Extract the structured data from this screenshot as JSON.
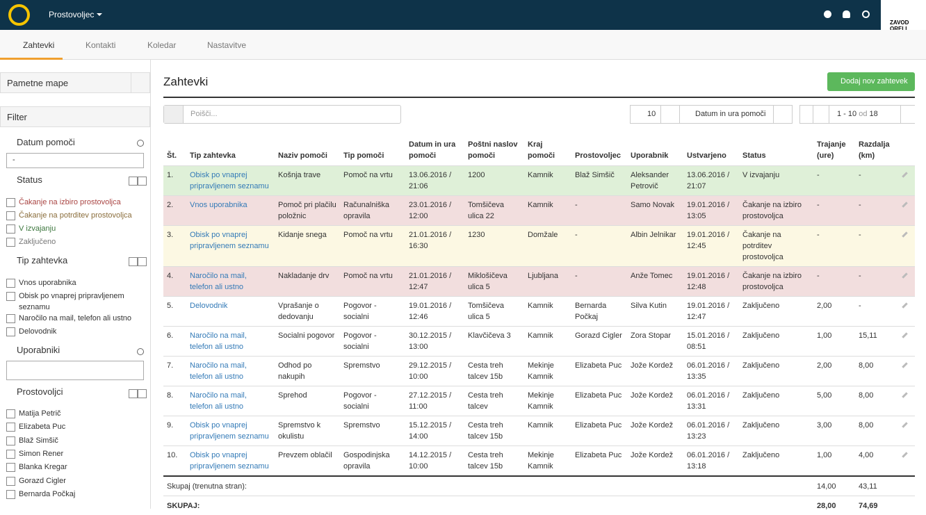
{
  "topbar": {
    "user": "Prostovoljec",
    "logo_text": "ZAVOD ORELI"
  },
  "tabs": [
    "Zahtevki",
    "Kontakti",
    "Koledar",
    "Nastavitve"
  ],
  "sidebar": {
    "smart_folders": "Pametne mape",
    "filter": "Filter",
    "date_section": {
      "title": "Datum pomoči",
      "select": "-"
    },
    "status_section": {
      "title": "Status",
      "options": [
        {
          "label": "Čakanje na izbiro prostovoljca",
          "color": "#a94442"
        },
        {
          "label": "Čakanje na potrditev prostovoljca",
          "color": "#8a6d3b"
        },
        {
          "label": "V izvajanju",
          "color": "#3c763d"
        },
        {
          "label": "Zaključeno",
          "color": "#777777"
        }
      ]
    },
    "type_section": {
      "title": "Tip zahtevka",
      "options": [
        "Vnos uporabnika",
        "Obisk po vnaprej pripravljenem seznamu",
        "Naročilo na mail, telefon ali ustno",
        "Delovodnik"
      ]
    },
    "users_section": {
      "title": "Uporabniki"
    },
    "volunteers_section": {
      "title": "Prostovoljci",
      "options": [
        "Matija Petrič",
        "Elizabeta Puc",
        "Blaž Simšič",
        "Simon Rener",
        "Blanka Kregar",
        "Gorazd Cigler",
        "Bernarda Počkaj"
      ]
    }
  },
  "main": {
    "title": "Zahtevki",
    "add_button": "Dodaj nov zahtevek",
    "search_placeholder": "Poišči...",
    "page_size": "10",
    "sort_by": "Datum in ura pomoči",
    "pagination": {
      "range": "1 - 10",
      "of": "od",
      "total": "18"
    },
    "table": {
      "headers": [
        "Št.",
        "Tip zahtevka",
        "Naziv pomoči",
        "Tip pomoči",
        "Datum in ura pomoči",
        "Poštni naslov pomoči",
        "Kraj pomoči",
        "Prostovoljec",
        "Uporabnik",
        "Ustvarjeno",
        "Status",
        "Trajanje (ure)",
        "Razdalja (km)"
      ],
      "rows": [
        {
          "color": "#dff0d8",
          "cells": [
            "1.",
            "Obisk po vnaprej pripravljenem seznamu",
            "Košnja trave",
            "Pomoč na vrtu",
            "13.06.2016 / 21:06",
            "1200",
            "Kamnik",
            "Blaž Simšič",
            "Aleksander Petrovič",
            "13.06.2016 / 21:07",
            "V izvajanju",
            "-",
            "-"
          ]
        },
        {
          "color": "#f2dede",
          "cells": [
            "2.",
            "Vnos uporabnika",
            "Pomoč pri plačilu položnic",
            "Računalniška opravila",
            "23.01.2016 / 12:00",
            "Tomšičeva ulica 22",
            "Kamnik",
            "-",
            "Samo Novak",
            "19.01.2016 / 13:05",
            "Čakanje na izbiro prostovoljca",
            "-",
            "-"
          ]
        },
        {
          "color": "#fcf8e3",
          "cells": [
            "3.",
            "Obisk po vnaprej pripravljenem seznamu",
            "Kidanje snega",
            "Pomoč na vrtu",
            "21.01.2016 / 16:30",
            "1230",
            "Domžale",
            "-",
            "Albin Jelnikar",
            "19.01.2016 / 12:45",
            "Čakanje na potrditev prostovoljca",
            "-",
            "-"
          ]
        },
        {
          "color": "#f2dede",
          "cells": [
            "4.",
            "Naročilo na mail, telefon ali ustno",
            "Nakladanje drv",
            "Pomoč na vrtu",
            "21.01.2016 / 12:47",
            "Miklošičeva ulica 5",
            "Ljubljana",
            "-",
            "Anže Tomec",
            "19.01.2016 / 12:48",
            "Čakanje na izbiro prostovoljca",
            "-",
            "-"
          ]
        },
        {
          "color": "#ffffff",
          "cells": [
            "5.",
            "Delovodnik",
            "Vprašanje o dedovanju",
            "Pogovor - socialni",
            "19.01.2016 / 12:46",
            "Tomšičeva ulica 5",
            "Kamnik",
            "Bernarda Počkaj",
            "Silva Kutin",
            "19.01.2016 / 12:47",
            "Zaključeno",
            "2,00",
            "-"
          ]
        },
        {
          "color": "#ffffff",
          "cells": [
            "6.",
            "Naročilo na mail, telefon ali ustno",
            "Socialni pogovor",
            "Pogovor - socialni",
            "30.12.2015 / 13:00",
            "Klavčičeva 3",
            "Kamnik",
            "Gorazd Cigler",
            "Zora Stopar",
            "15.01.2016 / 08:51",
            "Zaključeno",
            "1,00",
            "15,11"
          ]
        },
        {
          "color": "#ffffff",
          "cells": [
            "7.",
            "Naročilo na mail, telefon ali ustno",
            "Odhod po nakupih",
            "Spremstvo",
            "29.12.2015 / 10:00",
            "Cesta treh talcev 15b",
            "Mekinje Kamnik",
            "Elizabeta Puc",
            "Jože Kordež",
            "06.01.2016 / 13:35",
            "Zaključeno",
            "2,00",
            "8,00"
          ]
        },
        {
          "color": "#ffffff",
          "cells": [
            "8.",
            "Naročilo na mail, telefon ali ustno",
            "Sprehod",
            "Pogovor - socialni",
            "27.12.2015 / 11:00",
            "Cesta treh talcev",
            "Mekinje Kamnik",
            "Elizabeta Puc",
            "Jože Kordež",
            "06.01.2016 / 13:31",
            "Zaključeno",
            "5,00",
            "8,00"
          ]
        },
        {
          "color": "#ffffff",
          "cells": [
            "9.",
            "Obisk po vnaprej pripravljenem seznamu",
            "Spremstvo k okulistu",
            "Spremstvo",
            "15.12.2015 / 14:00",
            "Cesta treh talcev 15b",
            "Kamnik",
            "Elizabeta Puc",
            "Jože Kordež",
            "06.01.2016 / 13:23",
            "Zaključeno",
            "3,00",
            "8,00"
          ]
        },
        {
          "color": "#ffffff",
          "cells": [
            "10.",
            "Obisk po vnaprej pripravljenem seznamu",
            "Prevzem oblačil",
            "Gospodinjska opravila",
            "14.12.2015 / 10:00",
            "Cesta treh talcev 15b",
            "Mekinje Kamnik",
            "Elizabeta Puc",
            "Jože Kordež",
            "06.01.2016 / 13:18",
            "Zaključeno",
            "1,00",
            "4,00"
          ]
        }
      ],
      "subtotal": {
        "label": "Skupaj (trenutna stran):",
        "duration": "14,00",
        "distance": "43,11"
      },
      "total": {
        "label": "SKUPAJ:",
        "duration": "28,00",
        "distance": "74,69"
      }
    }
  }
}
